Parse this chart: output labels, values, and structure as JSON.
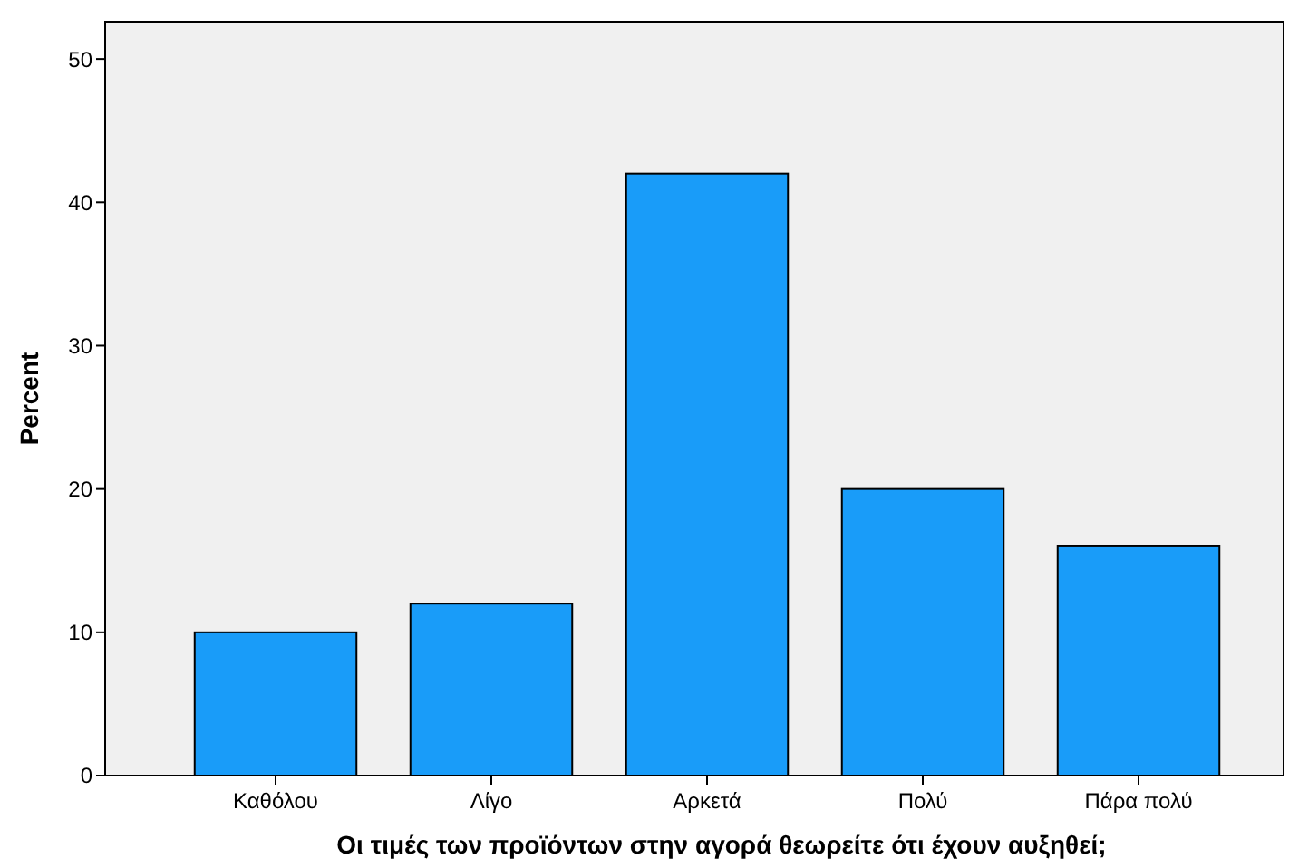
{
  "chart_data": {
    "type": "bar",
    "xlabel": "Οι τιμές των προϊόντων στην αγορά θεωρείτε ότι έχουν αυξηθεί;",
    "ylabel": "Percent",
    "categories": [
      "Καθόλου",
      "Λίγο",
      "Αρκετά",
      "Πολύ",
      "Πάρα πολύ"
    ],
    "values": [
      10,
      12,
      42,
      20,
      16
    ],
    "color": "#199cf9",
    "ylim": [
      0,
      52.6
    ],
    "yticks": [
      0,
      10,
      20,
      30,
      40,
      50
    ],
    "grid": false
  }
}
